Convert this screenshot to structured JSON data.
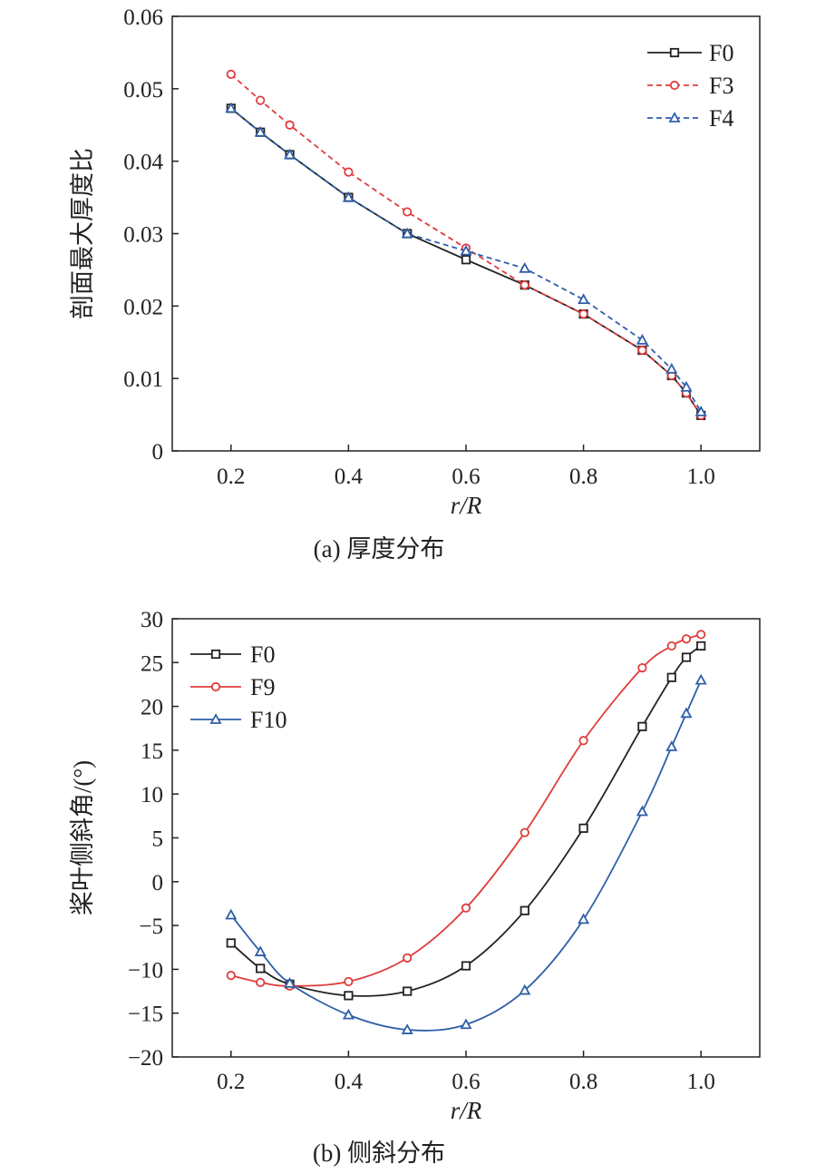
{
  "colors": {
    "F0": "#222222",
    "F3": "#e03c3c",
    "F4": "#2f5fa8",
    "F9": "#e03c3c",
    "F10": "#2f5fa8"
  },
  "chart_data": [
    {
      "type": "line",
      "caption": "(a) 厚度分布",
      "xlabel": "r/R",
      "ylabel": "剖面最大厚度比",
      "xlim": [
        0.1,
        1.1
      ],
      "ylim": [
        0,
        0.06
      ],
      "xticks": [
        0.2,
        0.4,
        0.6,
        0.8,
        1.0
      ],
      "xtick_labels": [
        "0.2",
        "0.4",
        "0.6",
        "0.8",
        "1.0"
      ],
      "yticks": [
        0,
        0.01,
        0.02,
        0.03,
        0.04,
        0.05,
        0.06
      ],
      "ytick_labels": [
        "0",
        "0.01",
        "0.02",
        "0.03",
        "0.04",
        "0.05",
        "0.06"
      ],
      "legend_position": "top-right",
      "grid": false,
      "series": [
        {
          "name": "F0",
          "color_key": "F0",
          "marker": "square",
          "dashed": false,
          "x": [
            0.2,
            0.25,
            0.3,
            0.4,
            0.5,
            0.6,
            0.7,
            0.8,
            0.9,
            0.95,
            0.975,
            1.0
          ],
          "y": [
            0.0473,
            0.044,
            0.0409,
            0.035,
            0.03,
            0.0264,
            0.0229,
            0.0189,
            0.0139,
            0.0104,
            0.008,
            0.0049
          ]
        },
        {
          "name": "F3",
          "color_key": "F3",
          "marker": "circle",
          "dashed": true,
          "x": [
            0.2,
            0.25,
            0.3,
            0.4,
            0.5,
            0.6,
            0.7,
            0.8,
            0.9,
            0.95,
            0.975,
            1.0
          ],
          "y": [
            0.052,
            0.0484,
            0.045,
            0.0385,
            0.033,
            0.028,
            0.0229,
            0.0189,
            0.0139,
            0.0104,
            0.008,
            0.0049
          ]
        },
        {
          "name": "F4",
          "color_key": "F4",
          "marker": "triangle",
          "dashed": true,
          "x": [
            0.2,
            0.25,
            0.3,
            0.4,
            0.5,
            0.6,
            0.7,
            0.8,
            0.9,
            0.95,
            0.975,
            1.0
          ],
          "y": [
            0.0473,
            0.044,
            0.0409,
            0.035,
            0.03,
            0.0276,
            0.0252,
            0.0209,
            0.0153,
            0.0113,
            0.0088,
            0.0054
          ]
        }
      ]
    },
    {
      "type": "line",
      "caption": "(b) 侧斜分布",
      "xlabel": "r/R",
      "ylabel": "桨叶侧斜角/(°)",
      "xlim": [
        0.1,
        1.1
      ],
      "ylim": [
        -20,
        30
      ],
      "xticks": [
        0.2,
        0.4,
        0.6,
        0.8,
        1.0
      ],
      "xtick_labels": [
        "0.2",
        "0.4",
        "0.6",
        "0.8",
        "1.0"
      ],
      "yticks": [
        -20,
        -15,
        -10,
        -5,
        0,
        5,
        10,
        15,
        20,
        25,
        30
      ],
      "ytick_labels": [
        "−20",
        "−15",
        "−10",
        "−5",
        "0",
        "5",
        "10",
        "15",
        "20",
        "25",
        "30"
      ],
      "legend_position": "top-left",
      "grid": false,
      "series": [
        {
          "name": "F0",
          "color_key": "F0",
          "marker": "square",
          "dashed": false,
          "x": [
            0.2,
            0.25,
            0.3,
            0.4,
            0.5,
            0.6,
            0.7,
            0.8,
            0.9,
            0.95,
            0.975,
            1.0
          ],
          "y": [
            -7.0,
            -9.9,
            -11.7,
            -13.0,
            -12.5,
            -9.6,
            -3.3,
            6.1,
            17.7,
            23.3,
            25.6,
            26.9
          ]
        },
        {
          "name": "F9",
          "color_key": "F9",
          "marker": "circle",
          "dashed": false,
          "x": [
            0.2,
            0.25,
            0.3,
            0.4,
            0.5,
            0.6,
            0.7,
            0.8,
            0.9,
            0.95,
            0.975,
            1.0
          ],
          "y": [
            -10.7,
            -11.5,
            -11.9,
            -11.4,
            -8.7,
            -3.0,
            5.6,
            16.1,
            24.4,
            26.9,
            27.7,
            28.2
          ]
        },
        {
          "name": "F10",
          "color_key": "F10",
          "marker": "triangle",
          "dashed": false,
          "x": [
            0.2,
            0.25,
            0.3,
            0.4,
            0.5,
            0.6,
            0.7,
            0.8,
            0.9,
            0.95,
            0.975,
            1.0
          ],
          "y": [
            -3.8,
            -8.0,
            -11.6,
            -15.2,
            -16.9,
            -16.3,
            -12.4,
            -4.3,
            8.0,
            15.4,
            19.2,
            23.0
          ]
        }
      ]
    }
  ]
}
